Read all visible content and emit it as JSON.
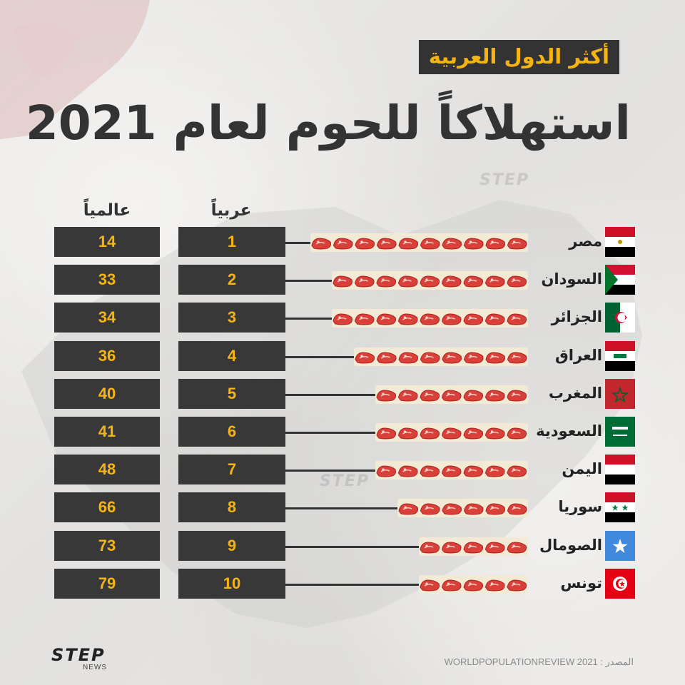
{
  "header": {
    "tag": "أكثر الدول العربية",
    "title": "استهلاكاً للحوم لعام 2021"
  },
  "columns": {
    "world": "عالمياً",
    "arab": "عربياً"
  },
  "colors": {
    "box_bg": "#383838",
    "number": "#f5b414",
    "text": "#333333",
    "steak": "#d9403a"
  },
  "chart_data": {
    "type": "table",
    "columns": [
      "عالمياً",
      "عربياً"
    ],
    "rows": [
      {
        "country": "مصر",
        "arab_rank": "1",
        "world_rank": "14",
        "flag": "egypt-flag",
        "icons": 10
      },
      {
        "country": "السودان",
        "arab_rank": "2",
        "world_rank": "33",
        "flag": "sudan-flag",
        "icons": 9
      },
      {
        "country": "الجزائر",
        "arab_rank": "3",
        "world_rank": "34",
        "flag": "algeria-flag",
        "icons": 9
      },
      {
        "country": "العراق",
        "arab_rank": "4",
        "world_rank": "36",
        "flag": "iraq-flag",
        "icons": 8
      },
      {
        "country": "المغرب",
        "arab_rank": "5",
        "world_rank": "40",
        "flag": "morocco-flag",
        "icons": 7
      },
      {
        "country": "السعودية",
        "arab_rank": "6",
        "world_rank": "41",
        "flag": "saudi-flag",
        "icons": 7
      },
      {
        "country": "اليمن",
        "arab_rank": "7",
        "world_rank": "48",
        "flag": "yemen-flag",
        "icons": 7
      },
      {
        "country": "سوريا",
        "arab_rank": "8",
        "world_rank": "66",
        "flag": "syria-flag",
        "icons": 6
      },
      {
        "country": "الصومال",
        "arab_rank": "9",
        "world_rank": "73",
        "flag": "somalia-flag",
        "icons": 5
      },
      {
        "country": "تونس",
        "arab_rank": "10",
        "world_rank": "79",
        "flag": "tunisia-flag",
        "icons": 5
      }
    ]
  },
  "footer": {
    "logo": "STEP",
    "logo_sub": "NEWS",
    "source": "المصدر : WORLDPOPULATIONREVIEW 2021",
    "watermark": "STEP"
  }
}
